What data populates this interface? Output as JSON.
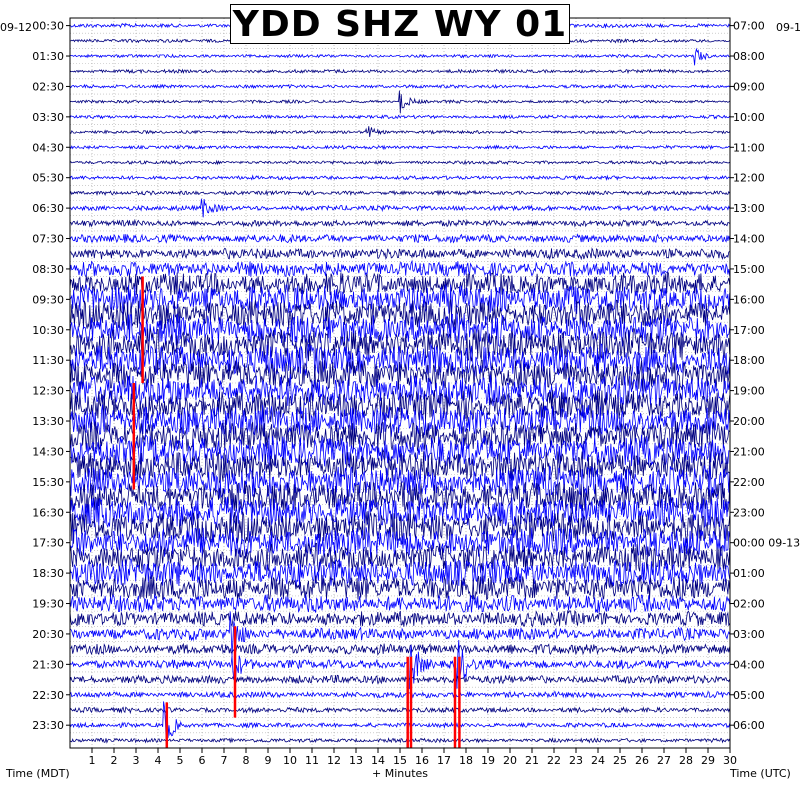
{
  "chart_data": {
    "type": "line",
    "title": "YDD SHZ WY 01",
    "xlabel": "+ Minutes",
    "left_axis_label": "Time (MDT)",
    "right_axis_label": "Time (UTC)",
    "left_date_label": "09-12",
    "right_date_label_top": "09-1",
    "right_date_change_label": "09-13",
    "x_ticks": [
      "1",
      "2",
      "3",
      "4",
      "5",
      "6",
      "7",
      "8",
      "9",
      "10",
      "11",
      "12",
      "13",
      "14",
      "15",
      "16",
      "17",
      "18",
      "19",
      "20",
      "21",
      "22",
      "23",
      "24",
      "25",
      "26",
      "27",
      "28",
      "29",
      "30"
    ],
    "xlim": [
      0,
      30
    ],
    "left_time_labels": [
      "00:30",
      "01:30",
      "02:30",
      "03:30",
      "04:30",
      "05:30",
      "06:30",
      "07:30",
      "08:30",
      "09:30",
      "10:30",
      "11:30",
      "12:30",
      "13:30",
      "14:30",
      "15:30",
      "16:30",
      "17:30",
      "18:30",
      "19:30",
      "20:30",
      "21:30",
      "22:30",
      "23:30"
    ],
    "right_time_labels": [
      "07:00",
      "08:00",
      "09:00",
      "10:00",
      "11:00",
      "12:00",
      "13:00",
      "14:00",
      "15:00",
      "16:00",
      "17:00",
      "18:00",
      "19:00",
      "20:00",
      "21:00",
      "22:00",
      "23:00",
      "00:00",
      "01:00",
      "02:00",
      "03:00",
      "04:00",
      "05:00",
      "06:00"
    ],
    "trace_count": 48,
    "trace_colors": [
      "#0000ff",
      "#000080"
    ],
    "clip_color": "#ff0000",
    "amplitude_profile": [
      0.08,
      0.06,
      0.05,
      0.06,
      0.06,
      0.05,
      0.06,
      0.05,
      0.06,
      0.06,
      0.07,
      0.08,
      0.12,
      0.15,
      0.22,
      0.3,
      0.45,
      0.7,
      0.9,
      0.95,
      1.0,
      1.0,
      1.0,
      1.0,
      1.0,
      1.0,
      1.0,
      1.0,
      1.0,
      1.0,
      1.0,
      1.0,
      1.0,
      1.0,
      0.95,
      0.9,
      0.85,
      0.8,
      0.55,
      0.45,
      0.35,
      0.3,
      0.25,
      0.22,
      0.15,
      0.12,
      0.1,
      0.08
    ],
    "events": [
      {
        "trace": 2,
        "minute": 28.4,
        "amp": 10
      },
      {
        "trace": 5,
        "minute": 15.0,
        "amp": 12
      },
      {
        "trace": 7,
        "minute": 13.5,
        "amp": 8
      },
      {
        "trace": 12,
        "minute": 6.0,
        "amp": 10
      },
      {
        "trace": 40,
        "minute": 7.3,
        "amp": 30
      },
      {
        "trace": 42,
        "minute": 7.4,
        "amp": 25
      },
      {
        "trace": 42,
        "minute": 15.4,
        "amp": 40
      },
      {
        "trace": 42,
        "minute": 17.6,
        "amp": 35
      },
      {
        "trace": 46,
        "minute": 4.3,
        "amp": 30
      }
    ],
    "clipped_segments": [
      {
        "minute": 3.3,
        "from_trace": 17,
        "to_trace": 23
      },
      {
        "minute": 2.9,
        "from_trace": 24,
        "to_trace": 30
      },
      {
        "minute": 7.5,
        "from_trace": 40,
        "to_trace": 45
      },
      {
        "minute": 15.35,
        "from_trace": 42,
        "to_trace": 47
      },
      {
        "minute": 15.5,
        "from_trace": 42,
        "to_trace": 47
      },
      {
        "minute": 17.5,
        "from_trace": 42,
        "to_trace": 47
      },
      {
        "minute": 17.7,
        "from_trace": 42,
        "to_trace": 47
      },
      {
        "minute": 4.4,
        "from_trace": 45,
        "to_trace": 47
      }
    ],
    "grid": true
  }
}
